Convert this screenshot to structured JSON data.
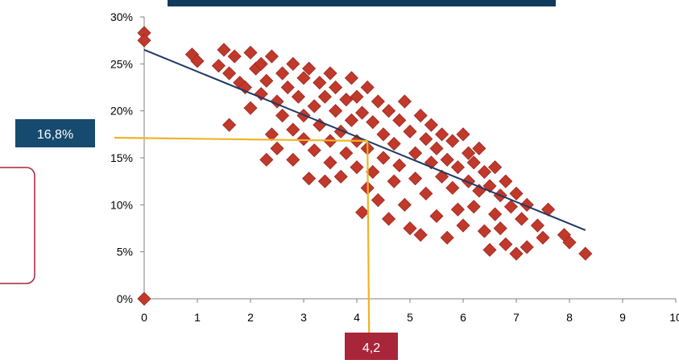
{
  "colors": {
    "marker": "#C0392B",
    "marker_edge": "#9E2A22",
    "trendline": "#1F3864",
    "guide": "#F0B323",
    "axis": "#808080",
    "title_bar": "#0F3A5E",
    "value_badge": "#164A6E",
    "x_badge": "#A8253A",
    "side_box_border": "#A8253A"
  },
  "annotations": {
    "y_value": "16,8%",
    "x_value": "4,2"
  },
  "chart_data": {
    "type": "scatter",
    "title": "",
    "xlabel": "",
    "ylabel": "",
    "xlim": [
      0,
      10
    ],
    "ylim": [
      0,
      0.3
    ],
    "x_ticks": [
      "0",
      "1",
      "2",
      "3",
      "4",
      "5",
      "6",
      "7",
      "8",
      "9",
      "10"
    ],
    "y_ticks": [
      "0%",
      "5%",
      "10%",
      "15%",
      "20%",
      "25%",
      "30%"
    ],
    "trendline": {
      "x": [
        0,
        8.3
      ],
      "y": [
        0.265,
        0.073
      ]
    },
    "guide_point": {
      "x": 4.2,
      "y": 0.168
    },
    "series": [
      {
        "points": [
          [
            0,
            0.283
          ],
          [
            0,
            0.275
          ],
          [
            0,
            0.0
          ],
          [
            0.9,
            0.26
          ],
          [
            1.0,
            0.253
          ],
          [
            1.4,
            0.248
          ],
          [
            1.5,
            0.265
          ],
          [
            1.6,
            0.185
          ],
          [
            1.6,
            0.24
          ],
          [
            1.7,
            0.258
          ],
          [
            1.8,
            0.23
          ],
          [
            1.9,
            0.225
          ],
          [
            2.0,
            0.262
          ],
          [
            2.0,
            0.203
          ],
          [
            2.1,
            0.245
          ],
          [
            2.2,
            0.25
          ],
          [
            2.2,
            0.218
          ],
          [
            2.3,
            0.148
          ],
          [
            2.3,
            0.232
          ],
          [
            2.4,
            0.175
          ],
          [
            2.4,
            0.258
          ],
          [
            2.5,
            0.16
          ],
          [
            2.5,
            0.21
          ],
          [
            2.6,
            0.24
          ],
          [
            2.6,
            0.195
          ],
          [
            2.7,
            0.225
          ],
          [
            2.8,
            0.25
          ],
          [
            2.8,
            0.18
          ],
          [
            2.8,
            0.148
          ],
          [
            2.9,
            0.215
          ],
          [
            3.0,
            0.235
          ],
          [
            3.0,
            0.17
          ],
          [
            3.0,
            0.195
          ],
          [
            3.1,
            0.245
          ],
          [
            3.1,
            0.128
          ],
          [
            3.2,
            0.205
          ],
          [
            3.2,
            0.158
          ],
          [
            3.3,
            0.23
          ],
          [
            3.3,
            0.185
          ],
          [
            3.4,
            0.215
          ],
          [
            3.4,
            0.125
          ],
          [
            3.5,
            0.24
          ],
          [
            3.5,
            0.168
          ],
          [
            3.5,
            0.145
          ],
          [
            3.6,
            0.2
          ],
          [
            3.6,
            0.225
          ],
          [
            3.7,
            0.178
          ],
          [
            3.7,
            0.13
          ],
          [
            3.8,
            0.212
          ],
          [
            3.8,
            0.155
          ],
          [
            3.9,
            0.235
          ],
          [
            3.9,
            0.19
          ],
          [
            4.0,
            0.168
          ],
          [
            4.0,
            0.14
          ],
          [
            4.0,
            0.215
          ],
          [
            4.1,
            0.092
          ],
          [
            4.1,
            0.198
          ],
          [
            4.2,
            0.225
          ],
          [
            4.2,
            0.16
          ],
          [
            4.2,
            0.118
          ],
          [
            4.3,
            0.188
          ],
          [
            4.3,
            0.135
          ],
          [
            4.4,
            0.21
          ],
          [
            4.4,
            0.105
          ],
          [
            4.5,
            0.175
          ],
          [
            4.5,
            0.15
          ],
          [
            4.6,
            0.2
          ],
          [
            4.6,
            0.085
          ],
          [
            4.7,
            0.165
          ],
          [
            4.7,
            0.125
          ],
          [
            4.8,
            0.19
          ],
          [
            4.8,
            0.142
          ],
          [
            4.9,
            0.21
          ],
          [
            4.9,
            0.1
          ],
          [
            5.0,
            0.178
          ],
          [
            5.0,
            0.075
          ],
          [
            5.1,
            0.155
          ],
          [
            5.1,
            0.128
          ],
          [
            5.2,
            0.195
          ],
          [
            5.2,
            0.068
          ],
          [
            5.3,
            0.17
          ],
          [
            5.3,
            0.112
          ],
          [
            5.4,
            0.145
          ],
          [
            5.4,
            0.185
          ],
          [
            5.5,
            0.088
          ],
          [
            5.5,
            0.16
          ],
          [
            5.6,
            0.13
          ],
          [
            5.6,
            0.175
          ],
          [
            5.7,
            0.065
          ],
          [
            5.7,
            0.148
          ],
          [
            5.8,
            0.118
          ],
          [
            5.8,
            0.168
          ],
          [
            5.9,
            0.095
          ],
          [
            5.9,
            0.14
          ],
          [
            6.0,
            0.175
          ],
          [
            6.0,
            0.078
          ],
          [
            6.1,
            0.125
          ],
          [
            6.1,
            0.155
          ],
          [
            6.2,
            0.098
          ],
          [
            6.2,
            0.145
          ],
          [
            6.3,
            0.16
          ],
          [
            6.3,
            0.115
          ],
          [
            6.4,
            0.135
          ],
          [
            6.4,
            0.072
          ],
          [
            6.5,
            0.12
          ],
          [
            6.5,
            0.052
          ],
          [
            6.6,
            0.14
          ],
          [
            6.6,
            0.09
          ],
          [
            6.7,
            0.11
          ],
          [
            6.7,
            0.075
          ],
          [
            6.8,
            0.125
          ],
          [
            6.8,
            0.058
          ],
          [
            6.9,
            0.098
          ],
          [
            7.0,
            0.112
          ],
          [
            7.0,
            0.048
          ],
          [
            7.1,
            0.085
          ],
          [
            7.2,
            0.055
          ],
          [
            7.2,
            0.1
          ],
          [
            7.4,
            0.078
          ],
          [
            7.5,
            0.065
          ],
          [
            7.6,
            0.095
          ],
          [
            7.9,
            0.068
          ],
          [
            8.0,
            0.06
          ],
          [
            8.3,
            0.048
          ]
        ]
      }
    ]
  }
}
